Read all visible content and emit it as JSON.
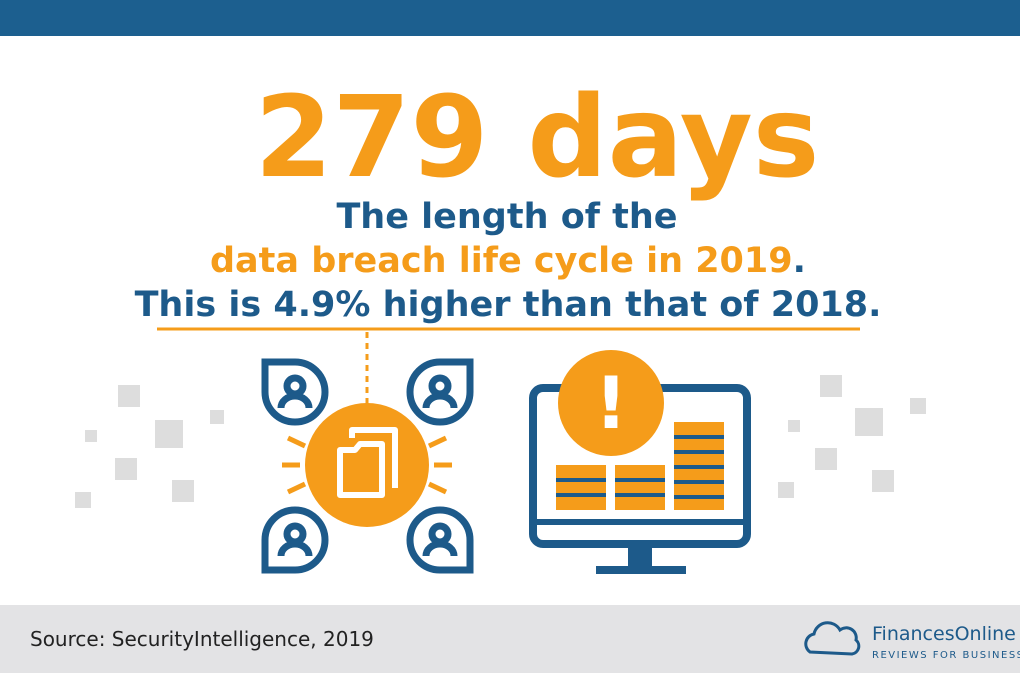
{
  "headline": "279 days",
  "lines": [
    "The length of the",
    "data breach life cycle in 2019",
    ".",
    "This is 4.9% higher than that of 2018."
  ],
  "icon_mark": "!",
  "footer": {
    "source": "Source: SecurityIntelligence, 2019",
    "brand": "FinancesOnline",
    "tagline": "REVIEWS FOR BUSINESS"
  }
}
